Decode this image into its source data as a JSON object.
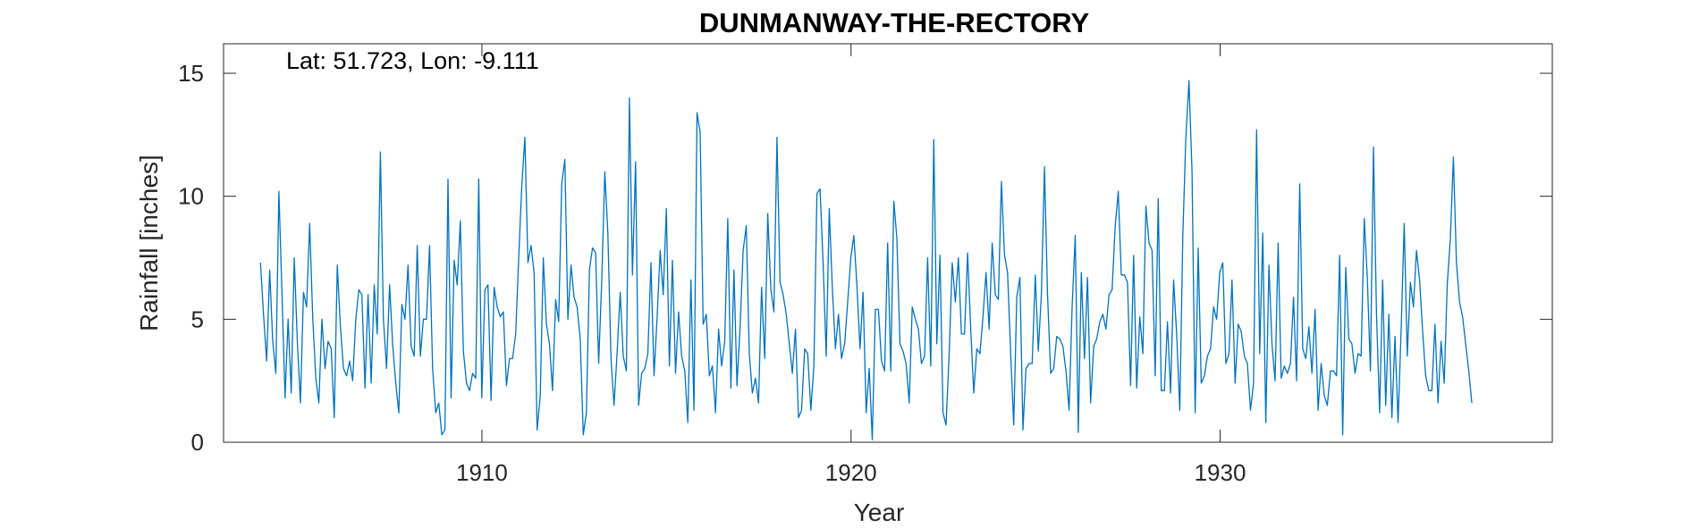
{
  "chart_data": {
    "type": "line",
    "title": "DUNMANWAY-THE-RECTORY",
    "xlabel": "Year",
    "ylabel": "Rainfall [inches]",
    "annotation": "Lat: 51.723, Lon: -9.111",
    "xlim": [
      1903,
      1939
    ],
    "ylim": [
      0,
      16.2
    ],
    "xticks": [
      1910,
      1920,
      1930
    ],
    "yticks": [
      0,
      5,
      10,
      15
    ],
    "grid": false,
    "line_color": "#0072BD",
    "series": [
      {
        "x_start": 1904.0,
        "x_step": 0.0833,
        "values": [
          7.3,
          5.2,
          3.3,
          7.0,
          4.1,
          2.8,
          10.2,
          6.1,
          1.8,
          5.0,
          2.0,
          7.5,
          4.1,
          1.6,
          6.1,
          5.5,
          8.9,
          5.1,
          2.6,
          1.6,
          5.0,
          3.0,
          4.1,
          3.8,
          1.0,
          7.2,
          4.7,
          3.0,
          2.7,
          3.3,
          2.5,
          5.0,
          6.2,
          6.0,
          2.2,
          6.0,
          2.4,
          6.4,
          4.4,
          11.8,
          5.0,
          3.0,
          6.4,
          4.0,
          2.4,
          1.2,
          5.6,
          5.0,
          7.2,
          3.9,
          3.5,
          8.0,
          3.5,
          5.0,
          5.0,
          8.0,
          3.0,
          1.2,
          1.6,
          0.3,
          0.5,
          10.7,
          1.8,
          7.4,
          6.4,
          9.0,
          3.7,
          2.4,
          2.1,
          2.8,
          2.6,
          10.7,
          1.8,
          6.2,
          6.4,
          1.7,
          6.3,
          5.5,
          5.1,
          5.3,
          2.3,
          3.4,
          3.4,
          4.4,
          7.5,
          10.4,
          12.4,
          7.3,
          8.0,
          6.9,
          0.5,
          1.9,
          7.5,
          4.8,
          4.0,
          2.1,
          5.8,
          4.9,
          10.5,
          11.5,
          5.0,
          7.2,
          5.9,
          5.5,
          4.2,
          0.3,
          1.2,
          7.0,
          7.9,
          7.7,
          3.2,
          6.5,
          11.0,
          8.5,
          3.4,
          1.5,
          3.6,
          6.1,
          3.5,
          2.9,
          14.0,
          6.8,
          11.4,
          1.5,
          2.8,
          3.0,
          3.6,
          7.3,
          2.7,
          5.0,
          7.8,
          6.0,
          9.5,
          3.1,
          7.4,
          2.8,
          5.3,
          3.5,
          2.9,
          0.8,
          6.6,
          1.3,
          13.4,
          12.6,
          4.8,
          5.2,
          2.7,
          3.1,
          1.2,
          4.6,
          3.1,
          4.1,
          9.1,
          2.2,
          7.0,
          2.3,
          4.7,
          7.8,
          8.8,
          3.6,
          2.0,
          2.6,
          1.6,
          6.3,
          3.4,
          9.3,
          6.2,
          5.3,
          12.4,
          6.5,
          6.0,
          5.2,
          4.0,
          2.8,
          4.6,
          1.0,
          1.3,
          3.8,
          3.6,
          1.3,
          3.1,
          10.1,
          10.3,
          7.3,
          3.5,
          9.5,
          6.3,
          3.8,
          5.2,
          3.4,
          4.0,
          5.7,
          7.5,
          8.4,
          6.4,
          3.8,
          6.1,
          1.2,
          3.0,
          0.1,
          5.4,
          5.4,
          3.3,
          2.9,
          8.1,
          2.9,
          9.8,
          8.3,
          4.0,
          3.7,
          3.2,
          1.6,
          5.5,
          5.0,
          4.6,
          3.2,
          3.5,
          7.5,
          3.1,
          12.3,
          4.0,
          7.6,
          1.2,
          0.7,
          3.6,
          7.3,
          5.7,
          7.5,
          4.4,
          4.4,
          7.7,
          4.6,
          2.0,
          3.8,
          3.6,
          5.1,
          6.9,
          4.6,
          8.1,
          6.0,
          5.8,
          10.6,
          7.6,
          6.9,
          3.6,
          0.7,
          5.9,
          6.7,
          0.5,
          3.0,
          3.2,
          3.2,
          6.8,
          3.7,
          6.0,
          11.2,
          6.0,
          2.8,
          3.0,
          4.3,
          4.2,
          3.9,
          2.9,
          1.3,
          5.5,
          8.4,
          0.4,
          6.9,
          3.4,
          6.7,
          1.6,
          3.9,
          4.2,
          4.9,
          5.2,
          4.6,
          6.0,
          6.2,
          8.8,
          10.2,
          6.8,
          6.8,
          6.5,
          2.3,
          7.6,
          2.2,
          5.1,
          3.6,
          9.6,
          8.1,
          7.8,
          2.7,
          9.9,
          2.1,
          2.1,
          4.9,
          2.0,
          6.6,
          4.4,
          1.3,
          8.4,
          12.4,
          14.7,
          11.0,
          1.2,
          7.9,
          2.4,
          2.7,
          3.5,
          3.8,
          5.5,
          5.0,
          6.9,
          7.3,
          3.2,
          3.6,
          6.6,
          2.4,
          4.8,
          4.5,
          3.5,
          3.2,
          1.3,
          2.4,
          12.7,
          3.6,
          8.5,
          0.8,
          7.2,
          4.0,
          2.5,
          8.1,
          2.6,
          3.1,
          2.8,
          3.2,
          5.9,
          2.5,
          10.5,
          3.8,
          3.4,
          4.7,
          2.8,
          5.4,
          1.3,
          3.2,
          1.9,
          1.5,
          2.9,
          2.9,
          2.7,
          7.6,
          0.3,
          7.1,
          4.2,
          4.0,
          2.8,
          3.6,
          3.5,
          9.1,
          6.7,
          2.9,
          12.0,
          5.2,
          1.2,
          6.6,
          1.5,
          5.2,
          1.0,
          4.3,
          0.8,
          4.5,
          8.9,
          3.5,
          6.5,
          5.5,
          7.8,
          6.6,
          4.5,
          2.7,
          2.1,
          2.1,
          4.8,
          1.6,
          4.1,
          2.4,
          6.4,
          8.3,
          11.6,
          7.3,
          5.7,
          5.1,
          4.0,
          2.9,
          1.6
        ]
      }
    ]
  }
}
